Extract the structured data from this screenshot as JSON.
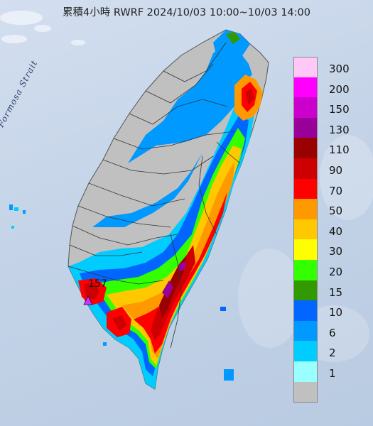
{
  "title": "累積4小時 RWRF 2024/10/03 10:00~10/03 14:00",
  "water_label": "Formosa Strait",
  "max_marker": "157",
  "legend": [
    {
      "label": "300",
      "color": "#ffc8f7"
    },
    {
      "label": "200",
      "color": "#ff00ff"
    },
    {
      "label": "150",
      "color": "#cc00cc"
    },
    {
      "label": "130",
      "color": "#990099"
    },
    {
      "label": "110",
      "color": "#990000"
    },
    {
      "label": "90",
      "color": "#cc0000"
    },
    {
      "label": "70",
      "color": "#ff0000"
    },
    {
      "label": "50",
      "color": "#ff9900"
    },
    {
      "label": "40",
      "color": "#ffc800"
    },
    {
      "label": "30",
      "color": "#ffff00"
    },
    {
      "label": "20",
      "color": "#33ff00"
    },
    {
      "label": "15",
      "color": "#339900"
    },
    {
      "label": "10",
      "color": "#0066ff"
    },
    {
      "label": "6",
      "color": "#0099ff"
    },
    {
      "label": "2",
      "color": "#00ccff"
    },
    {
      "label": "1",
      "color": "#99ffff"
    },
    {
      "label": "",
      "color": "#c0c0c0"
    }
  ]
}
